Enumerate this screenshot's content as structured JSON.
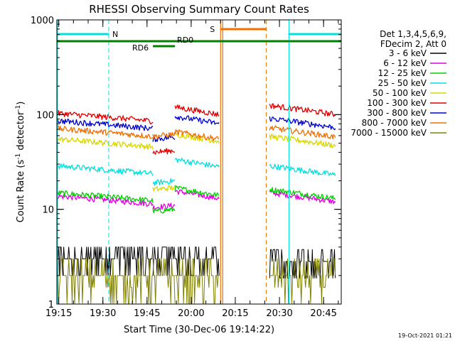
{
  "chart_data": {
    "type": "line",
    "title": "RHESSI Observing Summary Count Rates",
    "xlabel": "Start Time (30-Dec-06 19:14:22)",
    "ylabel": "Count Rate (s",
    "ylabel_sup1": "-1",
    "ylabel_mid": " detector",
    "ylabel_sup2": "-1",
    "ylabel_end": ")",
    "yscale": "log",
    "ylim": [
      1,
      1000
    ],
    "xlim": [
      "19:14:22",
      "20:51:00"
    ],
    "x_ticks": [
      "19:15",
      "19:30",
      "19:45",
      "20:00",
      "20:15",
      "20:30",
      "20:45"
    ],
    "y_ticks": [
      "1",
      "10",
      "100",
      "1000"
    ],
    "legend_header": [
      "Det 1,3,4,5,6,9,",
      "FDecim 2, Att 0"
    ],
    "timestamp": "19-Oct-2021 01:21",
    "segments": [
      {
        "start": "19:14:22",
        "end": "19:47:00",
        "start_factor": 1.15,
        "end_factor": 0.95
      },
      {
        "start": "19:47:00",
        "end": "19:54:30",
        "start_factor": 0.95,
        "end_factor": 1.0
      },
      {
        "start": "19:54:30",
        "end": "20:09:30",
        "start_factor": 1.2,
        "end_factor": 1.0
      },
      {
        "start": "20:26:40",
        "end": "20:49:00",
        "start_factor": 1.25,
        "end_factor": 1.0
      }
    ],
    "series": [
      {
        "name": "3 - 6 keV",
        "color": "#000000",
        "levels": [
          3.3,
          3.3,
          3.3,
          3.1
        ]
      },
      {
        "name": "6 - 12 keV",
        "color": "#e000e0",
        "levels": [
          12,
          11,
          13,
          12
        ]
      },
      {
        "name": "12 - 25 keV",
        "color": "#00d000",
        "levels": [
          13,
          10,
          14,
          13
        ]
      },
      {
        "name": "25 - 50 keV",
        "color": "#00e0e0",
        "levels": [
          25,
          20,
          28,
          23
        ]
      },
      {
        "name": "50 - 100 keV",
        "color": "#d8d800",
        "levels": [
          48,
          17,
          52,
          47
        ]
      },
      {
        "name": "100 - 300 keV",
        "color": "#e00000",
        "levels": [
          90,
          42,
          100,
          100
        ]
      },
      {
        "name": "300 - 800 keV",
        "color": "#0000d0",
        "levels": [
          75,
          58,
          80,
          73
        ]
      },
      {
        "name": "800 - 7000 keV",
        "color": "#f07000",
        "levels": [
          62,
          62,
          55,
          58
        ]
      },
      {
        "name": "7000 - 15000 keV",
        "color": "#808000",
        "levels": [
          2.0,
          2.0,
          2.0,
          2.0
        ]
      }
    ],
    "annotations": [
      {
        "type": "saa",
        "label": "S",
        "start": "20:10:00",
        "end": "20:25:30",
        "color": "#f07000"
      },
      {
        "type": "night",
        "label": "N",
        "start": "19:14:22",
        "end": "19:32:00",
        "color": "#00e0e0"
      },
      {
        "type": "night",
        "label": "",
        "start": "20:33:00",
        "end": "20:51:00",
        "color": "#00e0e0"
      },
      {
        "type": "data",
        "label": "RD0",
        "start": "19:14:22",
        "end": "20:51:00",
        "color": "#008000"
      },
      {
        "type": "data_dec",
        "label": "RD6",
        "start": "19:47:00",
        "end": "19:54:30",
        "color": "#008000"
      }
    ]
  }
}
